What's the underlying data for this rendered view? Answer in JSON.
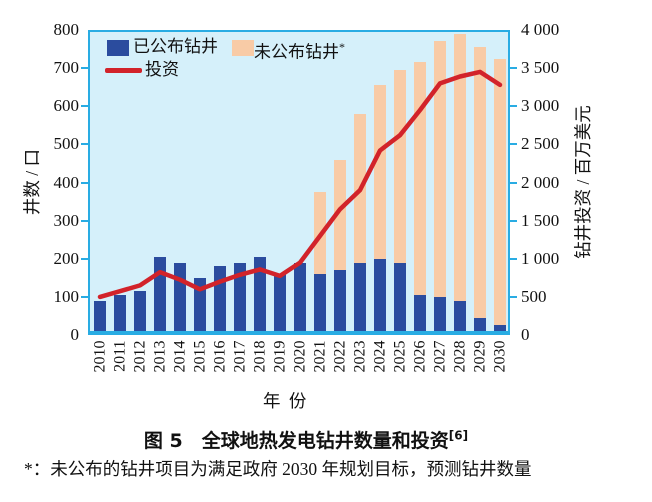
{
  "caption": {
    "label": "图 5　全球地热发电钻井数量和投资",
    "sup": "[6]"
  },
  "footnote": {
    "text": "*：未公布的钻井项目为满足政府 2030 年规划目标，预测钻井数量"
  },
  "colors": {
    "frame": "#29ace3",
    "plot_background": "#d5f0fa",
    "announced_bar": "#2b4c9e",
    "unannounced_bar": "#f8cba6",
    "investment_line": "#d2232a",
    "text": "#111111"
  },
  "chart_data": {
    "type": "bar",
    "subtype": "stacked bars with overlaid line",
    "xlabel": "年 份",
    "categories": [
      "2010",
      "2011",
      "2012",
      "2013",
      "2014",
      "2015",
      "2016",
      "2017",
      "2018",
      "2019",
      "2020",
      "2021",
      "2022",
      "2023",
      "2024",
      "2025",
      "2026",
      "2027",
      "2028",
      "2029",
      "2030"
    ],
    "left_axis": {
      "title": "井数 / 口",
      "min": 0,
      "max": 800,
      "step": 100,
      "tick_labels": [
        "0",
        "100",
        "200",
        "300",
        "400",
        "500",
        "600",
        "700",
        "800"
      ]
    },
    "right_axis": {
      "title": "钻井投资 / 百万美元",
      "min": 0,
      "max": 4000,
      "step": 500,
      "tick_labels": [
        "0",
        "500",
        "1 000",
        "1 500",
        "2 000",
        "2 500",
        "3 000",
        "3 500",
        "4 000"
      ]
    },
    "series": [
      {
        "name": "已公布钻井",
        "name_sup": "",
        "type": "bar",
        "axis": "left",
        "values": [
          90,
          105,
          115,
          205,
          190,
          150,
          180,
          190,
          205,
          160,
          190,
          160,
          170,
          190,
          200,
          190,
          105,
          100,
          90,
          45,
          25
        ]
      },
      {
        "name": "未公布钻井",
        "name_sup": "*",
        "type": "bar",
        "axis": "left",
        "values": [
          0,
          0,
          0,
          0,
          0,
          0,
          0,
          0,
          0,
          0,
          0,
          215,
          290,
          390,
          455,
          505,
          610,
          670,
          700,
          710,
          700
        ]
      },
      {
        "name": "投资",
        "name_sup": "",
        "type": "line",
        "axis": "right",
        "values": [
          500,
          575,
          650,
          825,
          725,
          600,
          700,
          790,
          860,
          775,
          950,
          1300,
          1650,
          1900,
          2420,
          2620,
          2950,
          3300,
          3390,
          3450,
          3280
        ]
      }
    ],
    "legend_position": "top-left inside plot",
    "grid": false
  }
}
